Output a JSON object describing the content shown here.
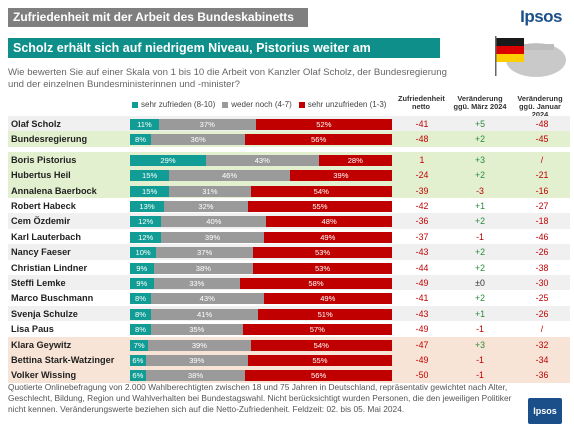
{
  "header": {
    "title": "Zufriedenheit mit der Arbeit des Bundeskabinetts",
    "brand": "Ipsos"
  },
  "subtitle": "Scholz erhält sich auf niedrigem Niveau, Pistorius weiter am beliebtesten",
  "question": "Wie bewerten Sie auf einer Skala von 1 bis 10 die Arbeit von Kanzler Olaf Scholz, der Bundesregierung und der einzelnen Bundesministerinnen und -minister?",
  "colors": {
    "satisfied": "#119d95",
    "neutral": "#9a9a9a",
    "dissatisfied": "#c00000",
    "teal_bar": "#0e8f8a",
    "gray_bar": "#7f7f7f"
  },
  "column_headers": {
    "net": "Zufriedenheit netto",
    "march": "Veränderung ggü. März 2024",
    "january": "Veränderung ggü. Januar 2024"
  },
  "footnote": "Quotierte Onlinebefragung von 2.000 Wahlberechtigten zwischen 18 und 75 Jahren in Deutschland, repräsentativ gewichtet nach Alter, Geschlecht, Bildung, Region und Wahlverhalten bei Bundestagswahl. Nicht berücksichtigt wurden Personen, die den jeweiligen Politiker nicht kennen. Veränderungswerte beziehen sich auf die Netto-Zufriedenheit. Feldzeit: 02. bis 05. Mai 2024.",
  "footer_logo": "Ipsos",
  "chart_data": {
    "type": "bar",
    "stacked": true,
    "orientation": "horizontal",
    "series": [
      {
        "name": "sehr zufrieden (8-10)",
        "color": "#119d95"
      },
      {
        "name": "weder noch (4-7)",
        "color": "#9a9a9a"
      },
      {
        "name": "sehr unzufrieden (1-3)",
        "color": "#c00000"
      }
    ],
    "rows": [
      {
        "label": "Olaf Scholz",
        "values": [
          11,
          37,
          52
        ],
        "net": "-41",
        "march": "+5",
        "january": "-48",
        "band": "1"
      },
      {
        "label": "Bundesregierung",
        "values": [
          8,
          36,
          56
        ],
        "net": "-48",
        "march": "+2",
        "january": "-45",
        "band": "g"
      },
      {
        "label": "Boris Pistorius",
        "values": [
          29,
          43,
          28
        ],
        "net": "1",
        "march": "+3",
        "january": "/",
        "band": "g"
      },
      {
        "label": "Hubertus Heil",
        "values": [
          15,
          46,
          39
        ],
        "net": "-24",
        "march": "+2",
        "january": "-21",
        "band": "g"
      },
      {
        "label": "Annalena Baerbock",
        "values": [
          15,
          31,
          54
        ],
        "net": "-39",
        "march": "-3",
        "january": "-16",
        "band": "g"
      },
      {
        "label": "Robert Habeck",
        "values": [
          13,
          32,
          55
        ],
        "net": "-42",
        "march": "+1",
        "january": "-27",
        "band": "0"
      },
      {
        "label": "Cem Özdemir",
        "values": [
          12,
          40,
          48
        ],
        "net": "-36",
        "march": "+2",
        "january": "-18",
        "band": "1"
      },
      {
        "label": "Karl Lauterbach",
        "values": [
          12,
          39,
          49
        ],
        "net": "-37",
        "march": "-1",
        "january": "-46",
        "band": "0"
      },
      {
        "label": "Nancy Faeser",
        "values": [
          10,
          37,
          53
        ],
        "net": "-43",
        "march": "+2",
        "january": "-26",
        "band": "1"
      },
      {
        "label": "Christian Lindner",
        "values": [
          9,
          38,
          53
        ],
        "net": "-44",
        "march": "+2",
        "january": "-38",
        "band": "0"
      },
      {
        "label": "Steffi Lemke",
        "values": [
          9,
          33,
          58
        ],
        "net": "-49",
        "march": "±0",
        "january": "-30",
        "band": "1"
      },
      {
        "label": "Marco Buschmann",
        "values": [
          8,
          43,
          49
        ],
        "net": "-41",
        "march": "+2",
        "january": "-25",
        "band": "0"
      },
      {
        "label": "Svenja Schulze",
        "values": [
          8,
          41,
          51
        ],
        "net": "-43",
        "march": "+1",
        "january": "-26",
        "band": "1"
      },
      {
        "label": "Lisa Paus",
        "values": [
          8,
          35,
          57
        ],
        "net": "-49",
        "march": "-1",
        "january": "/",
        "band": "0"
      },
      {
        "label": "Klara Geywitz",
        "values": [
          7,
          39,
          54
        ],
        "net": "-47",
        "march": "+3",
        "january": "-32",
        "band": "p"
      },
      {
        "label": "Bettina Stark-Watzinger",
        "values": [
          6,
          39,
          55
        ],
        "net": "-49",
        "march": "-1",
        "january": "-34",
        "band": "p"
      },
      {
        "label": "Volker Wissing",
        "values": [
          6,
          38,
          56
        ],
        "net": "-50",
        "march": "-1",
        "january": "-36",
        "band": "p"
      }
    ]
  }
}
